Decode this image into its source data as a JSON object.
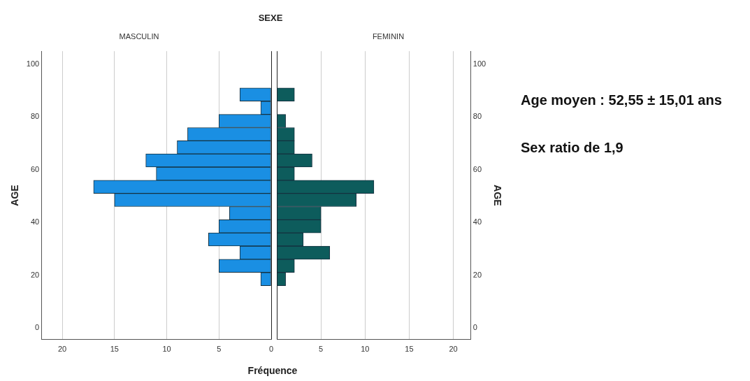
{
  "chart_data": [
    {
      "type": "histogram",
      "orientation": "horizontal",
      "title": "SEXE",
      "subtitle": "MASCULIN",
      "xlabel": "Fréquence",
      "ylabel": "AGE",
      "bins": [
        16,
        21,
        26,
        31,
        36,
        41,
        46,
        51,
        56,
        61,
        66,
        71,
        76,
        81,
        86,
        91
      ],
      "values": [
        1,
        5,
        3,
        6,
        5,
        4,
        15,
        17,
        11,
        12,
        9,
        8,
        5,
        1,
        3
      ],
      "color": "#1a8fe3",
      "xlim": [
        22,
        0
      ],
      "xticks": [
        0,
        5,
        10,
        15,
        20
      ],
      "ylim": [
        -4.5,
        105
      ],
      "yticks": [
        0,
        20,
        40,
        60,
        80,
        100
      ],
      "grid": "x"
    },
    {
      "type": "histogram",
      "orientation": "horizontal",
      "subtitle": "FEMININ",
      "ylabel": "AGE",
      "bins": [
        16,
        21,
        26,
        31,
        36,
        41,
        46,
        51,
        56,
        61,
        66,
        71,
        76,
        81,
        86,
        91
      ],
      "values": [
        1,
        2,
        6,
        3,
        5,
        5,
        9,
        11,
        2,
        4,
        2,
        2,
        1,
        0,
        2
      ],
      "color": "#0d5c5c",
      "xlim": [
        0,
        22
      ],
      "xticks": [
        {
          "value": 0,
          "label": null
        },
        5,
        10,
        15,
        20
      ],
      "ylim": [
        -4.5,
        105
      ],
      "yticks": [
        0,
        20,
        40,
        60,
        80,
        100
      ],
      "grid": "x",
      "annotations": [
        "Age moyen : 52,55 ± 15,01 ans",
        "Sex ratio de 1,9"
      ]
    }
  ]
}
